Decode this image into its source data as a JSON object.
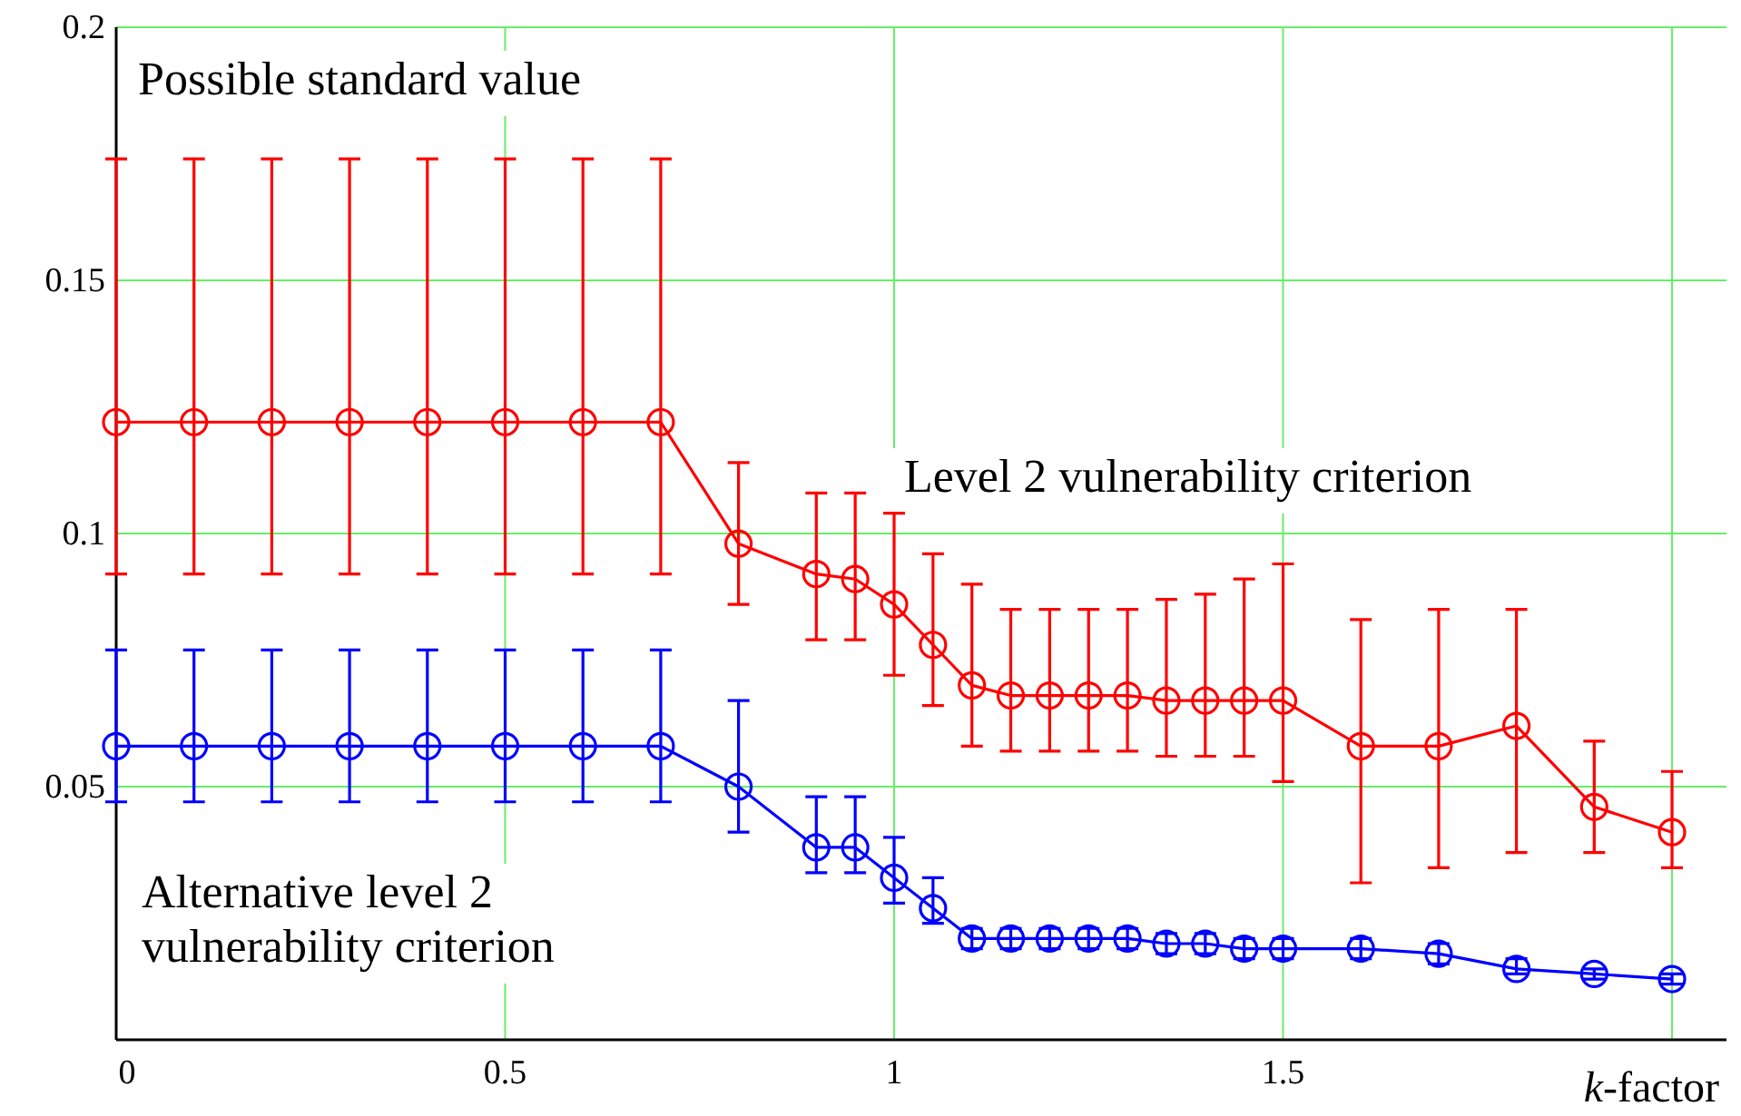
{
  "chart_data": {
    "type": "line",
    "xlabel": "k-factor",
    "annotations": [
      "Possible standard value"
    ],
    "x": [
      0,
      0.1,
      0.2,
      0.3,
      0.4,
      0.5,
      0.6,
      0.7,
      0.8,
      0.9,
      0.95,
      1.0,
      1.05,
      1.1,
      1.15,
      1.2,
      1.25,
      1.3,
      1.35,
      1.4,
      1.45,
      1.5,
      1.6,
      1.7,
      1.8,
      1.9,
      2.0
    ],
    "series": [
      {
        "name": "Level 2 vulnerability criterion",
        "color": "#ff0000",
        "values": [
          0.122,
          0.122,
          0.122,
          0.122,
          0.122,
          0.122,
          0.122,
          0.122,
          0.098,
          0.092,
          0.091,
          0.086,
          0.078,
          0.07,
          0.068,
          0.068,
          0.068,
          0.068,
          0.067,
          0.067,
          0.067,
          0.067,
          0.058,
          0.058,
          0.062,
          0.046,
          0.041
        ],
        "errors": [
          [
            0.092,
            0.174
          ],
          [
            0.092,
            0.174
          ],
          [
            0.092,
            0.174
          ],
          [
            0.092,
            0.174
          ],
          [
            0.092,
            0.174
          ],
          [
            0.092,
            0.174
          ],
          [
            0.092,
            0.174
          ],
          [
            0.092,
            0.174
          ],
          [
            0.086,
            0.114
          ],
          [
            0.079,
            0.108
          ],
          [
            0.079,
            0.108
          ],
          [
            0.072,
            0.104
          ],
          [
            0.066,
            0.096
          ],
          [
            0.058,
            0.09
          ],
          [
            0.057,
            0.085
          ],
          [
            0.057,
            0.085
          ],
          [
            0.057,
            0.085
          ],
          [
            0.057,
            0.085
          ],
          [
            0.056,
            0.087
          ],
          [
            0.056,
            0.088
          ],
          [
            0.056,
            0.091
          ],
          [
            0.051,
            0.094
          ],
          [
            0.031,
            0.083
          ],
          [
            0.034,
            0.085
          ],
          [
            0.037,
            0.085
          ],
          [
            0.037,
            0.059
          ],
          [
            0.034,
            0.053
          ]
        ]
      },
      {
        "name": "Alternative level 2 vulnerability criterion",
        "color": "#0000ff",
        "values": [
          0.058,
          0.058,
          0.058,
          0.058,
          0.058,
          0.058,
          0.058,
          0.058,
          0.05,
          0.038,
          0.038,
          0.032,
          0.026,
          0.02,
          0.02,
          0.02,
          0.02,
          0.02,
          0.019,
          0.019,
          0.018,
          0.018,
          0.018,
          0.017,
          0.014,
          0.013,
          0.012
        ],
        "errors": [
          [
            0.047,
            0.077
          ],
          [
            0.047,
            0.077
          ],
          [
            0.047,
            0.077
          ],
          [
            0.047,
            0.077
          ],
          [
            0.047,
            0.077
          ],
          [
            0.047,
            0.077
          ],
          [
            0.047,
            0.077
          ],
          [
            0.047,
            0.077
          ],
          [
            0.041,
            0.067
          ],
          [
            0.033,
            0.048
          ],
          [
            0.033,
            0.048
          ],
          [
            0.027,
            0.04
          ],
          [
            0.023,
            0.032
          ],
          [
            0.018,
            0.022
          ],
          [
            0.018,
            0.022
          ],
          [
            0.018,
            0.022
          ],
          [
            0.018,
            0.022
          ],
          [
            0.018,
            0.022
          ],
          [
            0.017,
            0.021
          ],
          [
            0.017,
            0.021
          ],
          [
            0.016,
            0.02
          ],
          [
            0.016,
            0.02
          ],
          [
            0.016,
            0.02
          ],
          [
            0.015,
            0.019
          ],
          [
            0.013,
            0.016
          ],
          [
            0.012,
            0.014
          ],
          [
            0.011,
            0.013
          ]
        ]
      }
    ],
    "xlim": [
      0,
      2.07
    ],
    "ylim": [
      0,
      0.2
    ],
    "xticks": [
      0,
      0.5,
      1,
      1.5,
      {
        "value": 2,
        "label": null
      }
    ],
    "yticks": [
      0.05,
      0.1,
      0.15,
      0.2
    ],
    "grid": true,
    "legend": false,
    "marker": "circle",
    "line_style": "solid"
  }
}
